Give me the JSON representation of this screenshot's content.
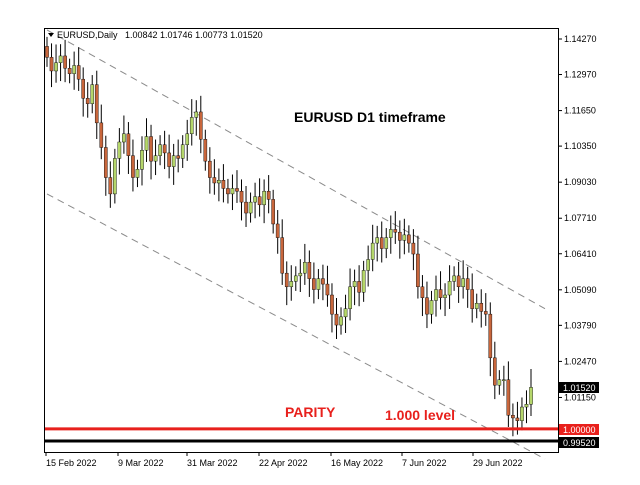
{
  "symbol_header": {
    "symbol": "EURUSD,Daily",
    "ohlc": "1.00842 1.01746 1.00773 1.01520"
  },
  "annotations": {
    "timeframe_title": "EURUSD D1 timeframe",
    "parity_label": "PARITY",
    "level_label": "1.000 level"
  },
  "colors": {
    "bull": "#b5d66b",
    "bear": "#c8663c",
    "parity_line": "#e8201c",
    "support_line": "#000000",
    "channel": "#8a8a8a"
  },
  "price_axis": {
    "ticks": [
      "1.14270",
      "1.12970",
      "1.11650",
      "1.10350",
      "1.09030",
      "1.07710",
      "1.06410",
      "1.05090",
      "1.03790",
      "1.02470",
      "1.01150"
    ],
    "current_price": "1.01520",
    "parity_price": "1.00000",
    "support_price": "0.99520"
  },
  "date_axis": {
    "labels": [
      "15 Feb 2022",
      "9 Mar 2022",
      "31 Mar 2022",
      "22 Apr 2022",
      "16 May 2022",
      "7 Jun 2022",
      "29 Jun 2022"
    ]
  },
  "chart_data": {
    "type": "candlestick",
    "symbol": "EURUSD",
    "timeframe": "Daily",
    "y_range": [
      0.99,
      1.149
    ],
    "horizontal_levels": [
      1.0,
      0.9952
    ],
    "channel": {
      "upper": [
        [
          "2022-02-15",
          1.146
        ],
        [
          "2022-07-15",
          1.044
        ]
      ],
      "lower": [
        [
          "2022-02-15",
          1.086
        ],
        [
          "2022-07-15",
          0.989
        ]
      ]
    },
    "closes": [
      1.136,
      1.131,
      1.134,
      1.1365,
      1.132,
      1.13,
      1.133,
      1.128,
      1.121,
      1.119,
      1.126,
      1.112,
      1.103,
      1.092,
      1.086,
      1.099,
      1.105,
      1.108,
      1.1,
      1.092,
      1.095,
      1.102,
      1.107,
      1.098,
      1.1,
      1.104,
      1.101,
      1.096,
      1.1,
      1.099,
      1.104,
      1.108,
      1.114,
      1.116,
      1.106,
      1.098,
      1.092,
      1.09,
      1.091,
      1.088,
      1.086,
      1.088,
      1.087,
      1.083,
      1.079,
      1.083,
      1.085,
      1.082,
      1.087,
      1.084,
      1.075,
      1.07,
      1.057,
      1.052,
      1.054,
      1.056,
      1.057,
      1.061,
      1.055,
      1.051,
      1.055,
      1.053,
      1.049,
      1.042,
      1.038,
      1.041,
      1.044,
      1.052,
      1.054,
      1.05,
      1.058,
      1.062,
      1.068,
      1.07,
      1.066,
      1.07,
      1.073,
      1.072,
      1.069,
      1.071,
      1.068,
      1.064,
      1.052,
      1.048,
      1.042,
      1.047,
      1.051,
      1.048,
      1.049,
      1.054,
      1.056,
      1.052,
      1.055,
      1.051,
      1.044,
      1.046,
      1.043,
      1.042,
      1.026,
      1.016,
      1.018,
      1.018,
      1.005,
      1.004,
      1.003,
      1.008,
      1.009,
      1.0152
    ]
  }
}
